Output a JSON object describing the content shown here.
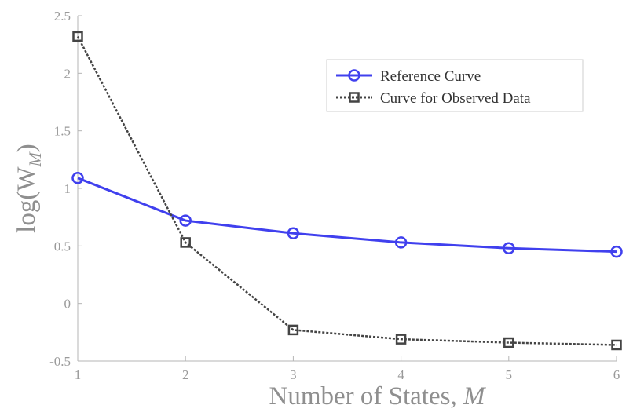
{
  "chart_data": {
    "type": "line",
    "x": [
      1,
      2,
      3,
      4,
      5,
      6
    ],
    "xlim": [
      1,
      6
    ],
    "ylim": [
      -0.5,
      2.5
    ],
    "xticks": [
      "1",
      "2",
      "3",
      "4",
      "5",
      "6"
    ],
    "yticks": [
      "-0.5",
      "0",
      "0.5",
      "1",
      "1.5",
      "2",
      "2.5"
    ],
    "xlabel": "Number of States, ",
    "xlabel_var": "M",
    "ylabel": "log(W",
    "ylabel_sub": "M",
    "ylabel_close": ")",
    "grid": false,
    "legend_position": "top-right",
    "series": [
      {
        "name": "Reference Curve",
        "values": [
          1.09,
          0.72,
          0.61,
          0.53,
          0.48,
          0.45
        ],
        "color": "#4040ee",
        "marker": "circle",
        "linestyle": "solid"
      },
      {
        "name": "Curve for Observed Data",
        "values": [
          2.32,
          0.53,
          -0.23,
          -0.31,
          -0.34,
          -0.36
        ],
        "color": "#444444",
        "marker": "square",
        "linestyle": "dotted"
      }
    ]
  }
}
